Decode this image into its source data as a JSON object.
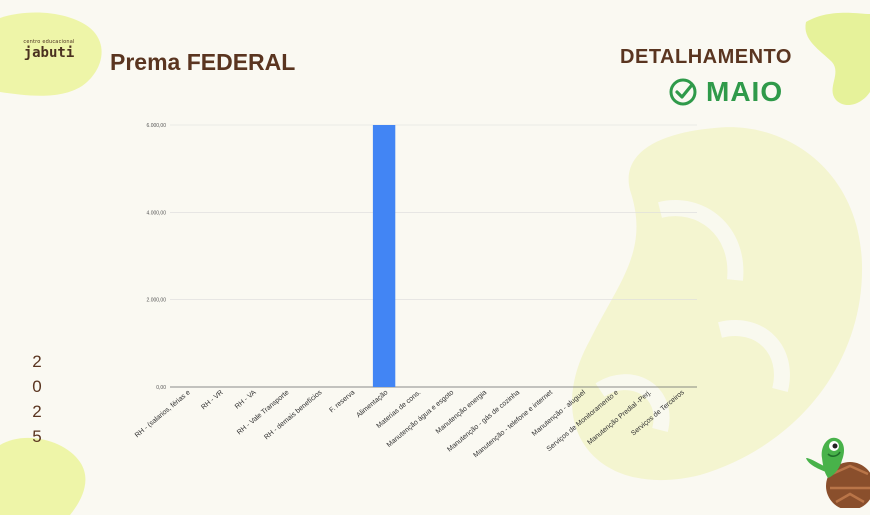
{
  "logo": {
    "small_text": "centro educacional",
    "big_text": "jabuti"
  },
  "page_title": "Prema FEDERAL",
  "header": {
    "detail_title": "DETALHAMENTO",
    "month": "MAIO"
  },
  "year_digits": [
    "2",
    "0",
    "2",
    "5"
  ],
  "icons": {
    "month_check": "check-circle-icon",
    "mascot": "turtle-mascot-icon"
  },
  "colors": {
    "bar": "#4285f4",
    "accent_green": "#2f9a4a",
    "brown": "#5a3520",
    "decor_yellow": "#eef5a8"
  },
  "chart_data": {
    "type": "bar",
    "title": "",
    "xlabel": "",
    "ylabel": "",
    "ylim": [
      0,
      6000
    ],
    "yticks": [
      0,
      2000,
      4000,
      6000
    ],
    "ytick_labels": [
      "0,00",
      "2.000,00",
      "4.000,00",
      "6.000,00"
    ],
    "grid": true,
    "categories": [
      "RH - (salarios, férias e",
      "RH - VR",
      "RH - VA",
      "RH - Vale Transporte",
      "RH - demais benefícios",
      "F. reserva",
      "Alimentação",
      "Materias de cons.",
      "Manutenção água e esgoto",
      "Manutenção energia",
      "Manutenção - gás de cozinha",
      "Manutenção - telefone e internet",
      "Manutenção - aluguel",
      "Serviços de Monitoramento e",
      "Manutenção Predial -Perj.",
      "Serviços de Terceiros"
    ],
    "values": [
      0,
      0,
      0,
      0,
      0,
      0,
      6000,
      0,
      0,
      0,
      0,
      0,
      0,
      0,
      0,
      0
    ]
  }
}
